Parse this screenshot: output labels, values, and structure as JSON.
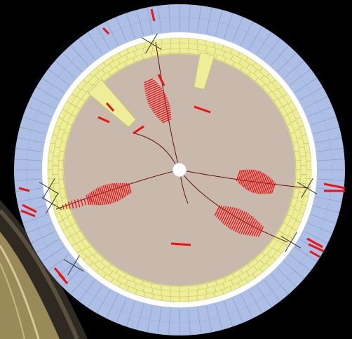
{
  "display": {
    "colors": {
      "background": "#000000",
      "outer_calorimeter": "#aebfe6",
      "outer_calorimeter_line": "#8c9fcc",
      "gap_ring": "#ffffff",
      "inner_calorimeter": "#eeee99",
      "inner_calorimeter_line": "#c8c66a",
      "tracker": "#c8b9ac",
      "hits": "#ee1111",
      "tracks": "#661111",
      "muon_markers": "#333333",
      "beam_pipe": "#ffffff",
      "detector_frame": "#5a5040"
    },
    "jets": [
      {
        "name": "jet-upper",
        "angle_deg": -83,
        "energy": 0.55
      },
      {
        "name": "jet-left",
        "angle_deg": -145,
        "energy": 0.5
      },
      {
        "name": "jet-right",
        "angle_deg": 5,
        "energy": 0.6
      },
      {
        "name": "jet-lower-right",
        "angle_deg": 35,
        "energy": 0.7
      },
      {
        "name": "jet-lower-left",
        "angle_deg": 175,
        "energy": 0.6
      }
    ]
  }
}
